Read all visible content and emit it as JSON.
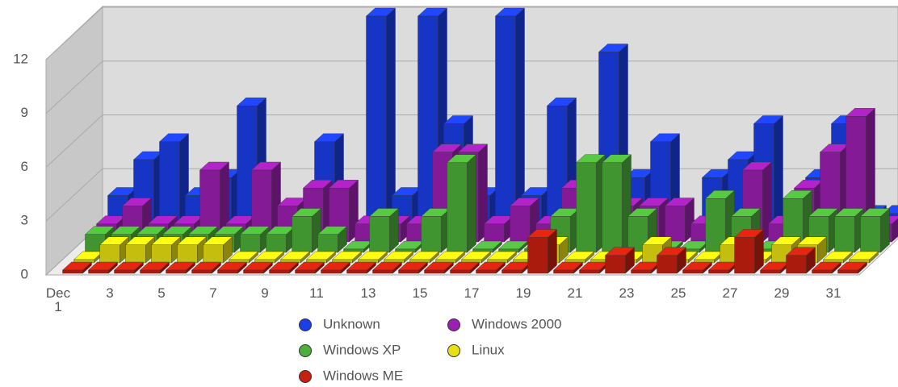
{
  "chart_data": {
    "type": "bar3d",
    "categories": [
      "Dec\n1",
      null,
      "3",
      null,
      "5",
      null,
      "7",
      null,
      "9",
      null,
      "11",
      null,
      "13",
      null,
      "15",
      null,
      "17",
      null,
      "19",
      null,
      "21",
      null,
      "23",
      null,
      "25",
      null,
      "27",
      null,
      "29",
      null,
      "31"
    ],
    "series": [
      {
        "name": "Unknown",
        "color": "#1a3ee8",
        "values": [
          2,
          4,
          5,
          2,
          3,
          7,
          0,
          0,
          5,
          0,
          12,
          2,
          12,
          6,
          2,
          12,
          2,
          7,
          0,
          10,
          3,
          5,
          0,
          3,
          4,
          6,
          0,
          3,
          6,
          1,
          1
        ]
      },
      {
        "name": "Windows 2000",
        "color": "#9b1fb0",
        "values": [
          1,
          2,
          1,
          1,
          4,
          1,
          4,
          2,
          3,
          3,
          1,
          1,
          1,
          5,
          5,
          1,
          2,
          1,
          3,
          1,
          2,
          2,
          2,
          1,
          1,
          4,
          1,
          3,
          5,
          7,
          1
        ]
      },
      {
        "name": "Windows XP",
        "color": "#4caf3a",
        "values": [
          1,
          1,
          1,
          1,
          1,
          1,
          1,
          1,
          2,
          1,
          0,
          2,
          0,
          2,
          5,
          0,
          0,
          0,
          2,
          5,
          5,
          2,
          0,
          0,
          3,
          2,
          0,
          3,
          2,
          2,
          2
        ]
      },
      {
        "name": "Linux",
        "color": "#e8e010",
        "values": [
          0,
          1,
          1,
          1,
          1,
          1,
          0,
          0,
          0,
          0,
          0,
          0,
          0,
          0,
          0,
          0,
          0,
          0,
          1,
          0,
          0,
          0,
          1,
          0,
          0,
          1,
          0,
          1,
          1,
          0,
          0
        ]
      },
      {
        "name": "Windows ME",
        "color": "#c82010",
        "values": [
          0,
          0,
          0,
          0,
          0,
          0,
          0,
          0,
          0,
          0,
          0,
          0,
          0,
          0,
          0,
          0,
          0,
          0,
          2,
          0,
          0,
          1,
          0,
          1,
          0,
          0,
          2,
          0,
          1,
          0,
          0
        ]
      }
    ],
    "ylim": [
      0,
      12
    ],
    "yticks": [
      0,
      3,
      6,
      9,
      12
    ],
    "grid": true
  }
}
